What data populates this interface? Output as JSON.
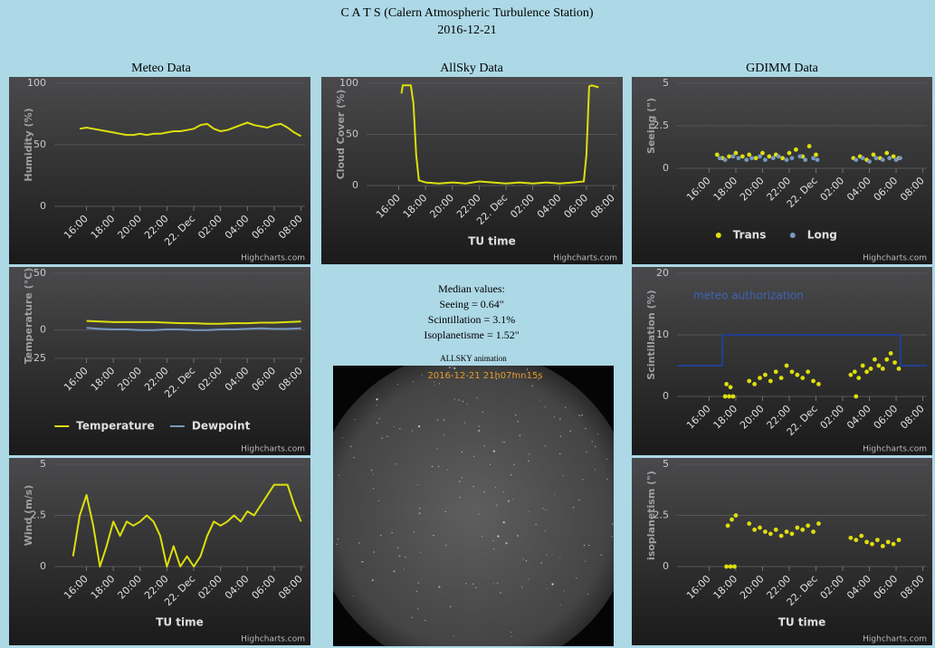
{
  "header": {
    "title": "C A T S (Calern Atmospheric Turbulence Station)",
    "date": "2016-12-21"
  },
  "columns": [
    "Meteo Data",
    "AllSky Data",
    "GDIMM Data"
  ],
  "median": {
    "title": "Median values:",
    "lines": [
      "Seeing = 0.64\"",
      "Scintillation = 3.1%",
      "Isoplanetisme = 1.52\""
    ]
  },
  "allsky": {
    "label": "ALLSKY animation",
    "timestamp": "2016-12-21 21h07mn15s"
  },
  "chart_data": [
    {
      "type": "line",
      "ylabel": "Humidity (%)",
      "ylim": [
        0,
        100
      ],
      "yticks": [
        0,
        50,
        100
      ],
      "xlim": [
        13.6,
        32.3
      ],
      "xticks": [
        {
          "value": 16,
          "label": "16:00"
        },
        {
          "value": 18,
          "label": "18:00"
        },
        {
          "value": 20,
          "label": "20:00"
        },
        {
          "value": 22,
          "label": "22:00"
        },
        {
          "value": 24,
          "label": "22. Dec"
        },
        {
          "value": 26,
          "label": "02:00"
        },
        {
          "value": 28,
          "label": "04:00"
        },
        {
          "value": 30,
          "label": "06:00"
        },
        {
          "value": 32,
          "label": "08:00"
        }
      ],
      "grid": true,
      "legend": false,
      "credits": "Highcharts.com",
      "series": [
        {
          "color": "#dddf0d",
          "x": [
            15.5,
            16,
            16.5,
            17,
            17.5,
            18,
            18.5,
            19,
            19.5,
            20,
            20.5,
            21,
            21.5,
            22,
            22.5,
            23,
            23.5,
            24,
            24.5,
            25,
            25.5,
            26,
            26.5,
            27,
            27.5,
            28,
            28.5,
            29,
            29.5,
            30,
            30.5,
            31,
            31.5,
            32
          ],
          "values": [
            63,
            64,
            63,
            62,
            61,
            60,
            59,
            58,
            58,
            59,
            58,
            59,
            59,
            60,
            61,
            61,
            62,
            63,
            66,
            67,
            63,
            61,
            62,
            64,
            66,
            68,
            66,
            65,
            64,
            66,
            67,
            64,
            60,
            57
          ]
        }
      ]
    },
    {
      "type": "line",
      "ylabel": "Cloud Cover (%)",
      "xlabel": "TU time",
      "ylim": [
        0,
        100
      ],
      "yticks": [
        0,
        50,
        100
      ],
      "xlim": [
        13.6,
        32.3
      ],
      "xticks": [
        {
          "value": 16,
          "label": "16:00"
        },
        {
          "value": 18,
          "label": "18:00"
        },
        {
          "value": 20,
          "label": "20:00"
        },
        {
          "value": 22,
          "label": "22:00"
        },
        {
          "value": 24,
          "label": "22. Dec"
        },
        {
          "value": 26,
          "label": "02:00"
        },
        {
          "value": 28,
          "label": "04:00"
        },
        {
          "value": 30,
          "label": "06:00"
        },
        {
          "value": 32,
          "label": "08:00"
        }
      ],
      "grid": true,
      "legend": false,
      "credits": "Highcharts.com",
      "series": [
        {
          "color": "#dddf0d",
          "x": [
            16.2,
            16.3,
            16.9,
            17.1,
            17.3,
            17.5,
            18,
            19,
            20,
            21,
            22,
            23,
            24,
            25,
            26,
            27,
            28,
            29,
            29.8,
            30.0,
            30.2,
            30.4,
            30.9
          ],
          "values": [
            90,
            98,
            98,
            80,
            30,
            5,
            3,
            2,
            3,
            2,
            4,
            3,
            2,
            3,
            2,
            3,
            2,
            3,
            4,
            30,
            97,
            98,
            96
          ]
        }
      ]
    },
    {
      "type": "scatter",
      "ylabel": "Seeing (\")",
      "ylim": [
        0,
        5
      ],
      "yticks": [
        0,
        2.5,
        5
      ],
      "xlim": [
        13.6,
        32.3
      ],
      "xticks": [
        {
          "value": 16,
          "label": "16:00"
        },
        {
          "value": 18,
          "label": "18:00"
        },
        {
          "value": 20,
          "label": "20:00"
        },
        {
          "value": 22,
          "label": "22:00"
        },
        {
          "value": 24,
          "label": "22. Dec"
        },
        {
          "value": 26,
          "label": "02:00"
        },
        {
          "value": 28,
          "label": "04:00"
        },
        {
          "value": 30,
          "label": "06:00"
        },
        {
          "value": 32,
          "label": "08:00"
        }
      ],
      "grid": true,
      "legend": true,
      "credits": "Highcharts.com",
      "series": [
        {
          "name": "Trans",
          "color": "#dddf0d",
          "x": [
            16.6,
            17.0,
            17.5,
            18.0,
            18.5,
            19.0,
            19.5,
            20.0,
            20.5,
            21.0,
            21.5,
            22.0,
            22.5,
            23.0,
            23.5,
            24.0,
            26.8,
            27.3,
            27.8,
            28.3,
            28.8,
            29.3,
            29.8,
            30.2
          ],
          "values": [
            0.8,
            0.6,
            0.7,
            0.9,
            0.7,
            0.8,
            0.6,
            0.9,
            0.7,
            0.8,
            0.6,
            0.9,
            1.1,
            0.7,
            1.3,
            0.8,
            0.6,
            0.7,
            0.5,
            0.8,
            0.6,
            0.9,
            0.7,
            0.6
          ]
        },
        {
          "name": "Long",
          "color": "#7798bf",
          "x": [
            16.8,
            17.2,
            17.8,
            18.2,
            18.8,
            19.2,
            19.8,
            20.2,
            20.8,
            21.2,
            21.8,
            22.2,
            22.8,
            23.2,
            23.8,
            24.1,
            27.0,
            27.5,
            28.0,
            28.5,
            29.0,
            29.5,
            30.0,
            30.3
          ],
          "values": [
            0.6,
            0.5,
            0.7,
            0.6,
            0.5,
            0.6,
            0.7,
            0.5,
            0.6,
            0.7,
            0.5,
            0.6,
            0.7,
            0.5,
            0.6,
            0.5,
            0.5,
            0.6,
            0.4,
            0.6,
            0.5,
            0.6,
            0.5,
            0.6
          ]
        }
      ]
    },
    {
      "type": "line",
      "ylabel": "Temperature (°C)",
      "ylim": [
        -25,
        50
      ],
      "yticks": [
        -25,
        0,
        50
      ],
      "xlim": [
        13.6,
        32.3
      ],
      "xticks": [
        {
          "value": 16,
          "label": "16:00"
        },
        {
          "value": 18,
          "label": "18:00"
        },
        {
          "value": 20,
          "label": "20:00"
        },
        {
          "value": 22,
          "label": "22:00"
        },
        {
          "value": 24,
          "label": "22. Dec"
        },
        {
          "value": 26,
          "label": "02:00"
        },
        {
          "value": 28,
          "label": "04:00"
        },
        {
          "value": 30,
          "label": "06:00"
        },
        {
          "value": 32,
          "label": "08:00"
        }
      ],
      "grid": true,
      "legend": true,
      "credits": "Highcharts.com",
      "series": [
        {
          "name": "Temperature",
          "color": "#dddf0d",
          "x": [
            16,
            17,
            18,
            19,
            20,
            21,
            22,
            23,
            24,
            25,
            26,
            27,
            28,
            29,
            30,
            31,
            32
          ],
          "values": [
            8,
            7.5,
            7,
            7,
            7,
            7,
            6.5,
            6,
            6,
            5.5,
            5.5,
            6,
            6,
            6.5,
            6.5,
            7,
            7.5
          ]
        },
        {
          "name": "Dewpoint",
          "color": "#7798bf",
          "x": [
            16,
            17,
            18,
            19,
            20,
            21,
            22,
            23,
            24,
            25,
            26,
            27,
            28,
            29,
            30,
            31,
            32
          ],
          "values": [
            2,
            1,
            0.5,
            0.5,
            0,
            0,
            0.5,
            0.5,
            0,
            0,
            0.5,
            0.5,
            1,
            1.5,
            1,
            1,
            1.5
          ]
        }
      ]
    },
    {
      "type": "scatter",
      "ylabel": "Scintillation (%)",
      "ylim": [
        0,
        20
      ],
      "yticks": [
        0,
        10,
        20
      ],
      "xlim": [
        13.6,
        32.3
      ],
      "xticks": [
        {
          "value": 16,
          "label": "16:00"
        },
        {
          "value": 18,
          "label": "18:00"
        },
        {
          "value": 20,
          "label": "20:00"
        },
        {
          "value": 22,
          "label": "22:00"
        },
        {
          "value": 24,
          "label": "22. Dec"
        },
        {
          "value": 26,
          "label": "02:00"
        },
        {
          "value": 28,
          "label": "04:00"
        },
        {
          "value": 30,
          "label": "06:00"
        },
        {
          "value": 32,
          "label": "08:00"
        }
      ],
      "grid": true,
      "legend": false,
      "credits": "Highcharts.com",
      "series": [
        {
          "color": "#dddf0d",
          "x": [
            17.2,
            17.5,
            17.8,
            17.3,
            17.6,
            19.0,
            19.4,
            19.8,
            20.2,
            20.6,
            21.0,
            21.4,
            21.8,
            22.2,
            22.6,
            23.0,
            23.4,
            23.8,
            24.2,
            26.6,
            26.9,
            27.2,
            27.0,
            27.5,
            27.8,
            28.1,
            28.4,
            28.7,
            29.0,
            29.3,
            29.6,
            29.9,
            30.2
          ],
          "values": [
            0,
            0,
            0,
            2,
            1.5,
            2.5,
            2,
            3,
            3.5,
            2.5,
            4,
            3,
            5,
            4,
            3.5,
            3,
            4,
            2.5,
            2,
            3.5,
            4,
            3,
            0,
            5,
            4,
            4.5,
            6,
            5,
            4.5,
            6,
            7,
            5.5,
            4.5
          ]
        },
        {
          "name": "meteo authorization",
          "type": "line",
          "color": "#1f3f8f",
          "x": [
            13.6,
            17.0,
            17.0,
            30.33,
            30.33,
            32.3
          ],
          "values": [
            5,
            5,
            10,
            10,
            5,
            5
          ]
        }
      ]
    },
    {
      "type": "line",
      "ylabel": "Wind (m/s)",
      "xlabel": "TU time",
      "ylim": [
        0,
        5
      ],
      "yticks": [
        0,
        2.5,
        5
      ],
      "xlim": [
        13.6,
        32.3
      ],
      "xticks": [
        {
          "value": 16,
          "label": "16:00"
        },
        {
          "value": 18,
          "label": "18:00"
        },
        {
          "value": 20,
          "label": "20:00"
        },
        {
          "value": 22,
          "label": "22:00"
        },
        {
          "value": 24,
          "label": "22. Dec"
        },
        {
          "value": 26,
          "label": "02:00"
        },
        {
          "value": 28,
          "label": "04:00"
        },
        {
          "value": 30,
          "label": "06:00"
        },
        {
          "value": 32,
          "label": "08:00"
        }
      ],
      "grid": true,
      "legend": false,
      "credits": "Highcharts.com",
      "series": [
        {
          "color": "#dddf0d",
          "x": [
            15,
            15.5,
            16,
            16.5,
            17,
            17.5,
            18,
            18.5,
            19,
            19.5,
            20,
            20.5,
            21,
            21.5,
            22,
            22.5,
            23,
            23.5,
            24,
            24.5,
            25,
            25.5,
            26,
            26.5,
            27,
            27.5,
            28,
            28.5,
            29,
            29.5,
            30,
            30.5,
            31,
            31.5,
            32
          ],
          "values": [
            0.5,
            2.5,
            3.5,
            2.0,
            0,
            1.0,
            2.2,
            1.5,
            2.2,
            2.0,
            2.2,
            2.5,
            2.2,
            1.5,
            0,
            1.0,
            0,
            0.5,
            0,
            0.5,
            1.5,
            2.2,
            2.0,
            2.2,
            2.5,
            2.2,
            2.7,
            2.5,
            3.0,
            3.5,
            4.0,
            4.0,
            4.0,
            3.0,
            2.2
          ]
        }
      ]
    },
    {
      "type": "scatter",
      "ylabel": "isoplanetism (\")",
      "xlabel": "TU time",
      "ylim": [
        0,
        5
      ],
      "yticks": [
        0,
        2.5,
        5
      ],
      "xlim": [
        13.6,
        32.3
      ],
      "xticks": [
        {
          "value": 16,
          "label": "16:00"
        },
        {
          "value": 18,
          "label": "18:00"
        },
        {
          "value": 20,
          "label": "20:00"
        },
        {
          "value": 22,
          "label": "22:00"
        },
        {
          "value": 24,
          "label": "22. Dec"
        },
        {
          "value": 26,
          "label": "02:00"
        },
        {
          "value": 28,
          "label": "04:00"
        },
        {
          "value": 30,
          "label": "06:00"
        },
        {
          "value": 32,
          "label": "08:00"
        }
      ],
      "grid": true,
      "legend": false,
      "credits": "Highcharts.com",
      "series": [
        {
          "color": "#dddf0d",
          "x": [
            17.3,
            17.6,
            17.9,
            17.4,
            17.7,
            18.0,
            19.0,
            19.4,
            19.8,
            20.2,
            20.6,
            21.0,
            21.4,
            21.8,
            22.2,
            22.6,
            23.0,
            23.4,
            23.8,
            24.2,
            26.6,
            27.0,
            27.4,
            27.8,
            28.2,
            28.6,
            29.0,
            29.4,
            29.8,
            30.2
          ],
          "values": [
            0,
            0,
            0,
            2.0,
            2.3,
            2.5,
            2.1,
            1.8,
            1.9,
            1.7,
            1.6,
            1.8,
            1.5,
            1.7,
            1.6,
            1.9,
            1.8,
            2.0,
            1.7,
            2.1,
            1.4,
            1.3,
            1.5,
            1.2,
            1.1,
            1.3,
            1.0,
            1.2,
            1.1,
            1.3
          ]
        }
      ]
    }
  ]
}
